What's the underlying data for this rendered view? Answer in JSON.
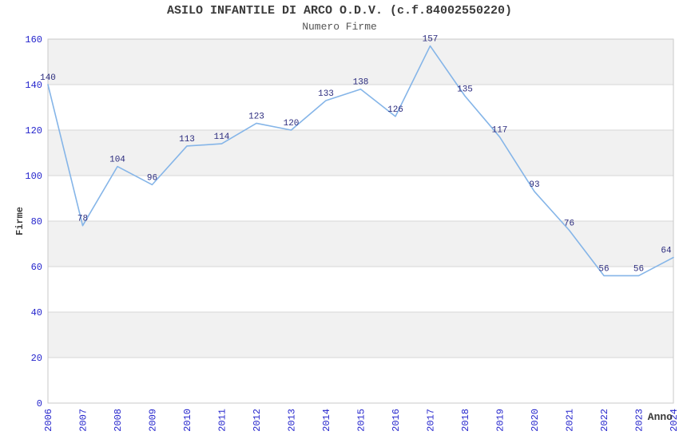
{
  "chart_data": {
    "type": "line",
    "title": "ASILO INFANTILE DI ARCO O.D.V. (c.f.84002550220)",
    "subtitle": "Numero Firme",
    "xlabel": "Anno",
    "ylabel": "Firme",
    "categories": [
      "2006",
      "2007",
      "2008",
      "2009",
      "2010",
      "2011",
      "2012",
      "2013",
      "2014",
      "2015",
      "2016",
      "2017",
      "2018",
      "2019",
      "2020",
      "2021",
      "2022",
      "2023",
      "2024"
    ],
    "values": [
      140,
      78,
      104,
      96,
      113,
      114,
      123,
      120,
      133,
      138,
      126,
      157,
      135,
      117,
      93,
      76,
      56,
      56,
      64
    ],
    "ylim": [
      0,
      160
    ],
    "ytick_step": 20,
    "yticks": [
      0,
      20,
      40,
      60,
      80,
      100,
      120,
      140,
      160
    ],
    "grid": "horizontal-with-alternating-bands",
    "legend": "none",
    "markers": "none",
    "data_labels": "above-points",
    "colors": {
      "line": "#85b5e8",
      "point_label": "#2a2a7d",
      "axis_label": "#2424cc",
      "title": "#3a3a3a",
      "subtitle": "#555555",
      "band": "#f1f1f1",
      "gridline": "#d6d6d6",
      "plot_border": "#c9c9c9",
      "background": "#ffffff"
    }
  }
}
